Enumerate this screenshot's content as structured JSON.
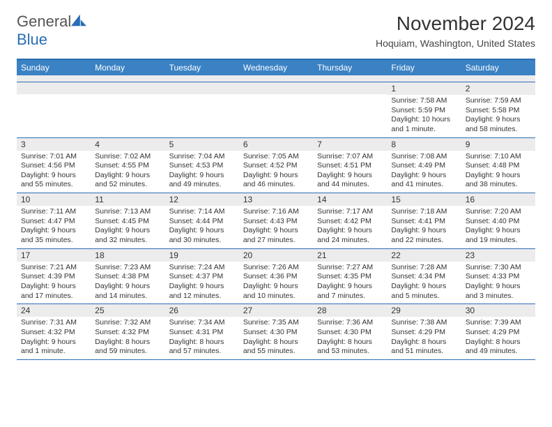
{
  "logo": {
    "word1": "General",
    "word2": "Blue"
  },
  "title": "November 2024",
  "subtitle": "Hoquiam, Washington, United States",
  "colors": {
    "header_bar": "#3b82c4",
    "rule": "#2a6db5",
    "daynum_bg": "#ececec",
    "text": "#333333",
    "logo_gray": "#555555",
    "logo_blue": "#2a6db5"
  },
  "weekdays": [
    "Sunday",
    "Monday",
    "Tuesday",
    "Wednesday",
    "Thursday",
    "Friday",
    "Saturday"
  ],
  "weeks": [
    [
      null,
      null,
      null,
      null,
      null,
      {
        "n": "1",
        "sunrise": "7:58 AM",
        "sunset": "5:59 PM",
        "daylight": "10 hours and 1 minute."
      },
      {
        "n": "2",
        "sunrise": "7:59 AM",
        "sunset": "5:58 PM",
        "daylight": "9 hours and 58 minutes."
      }
    ],
    [
      {
        "n": "3",
        "sunrise": "7:01 AM",
        "sunset": "4:56 PM",
        "daylight": "9 hours and 55 minutes."
      },
      {
        "n": "4",
        "sunrise": "7:02 AM",
        "sunset": "4:55 PM",
        "daylight": "9 hours and 52 minutes."
      },
      {
        "n": "5",
        "sunrise": "7:04 AM",
        "sunset": "4:53 PM",
        "daylight": "9 hours and 49 minutes."
      },
      {
        "n": "6",
        "sunrise": "7:05 AM",
        "sunset": "4:52 PM",
        "daylight": "9 hours and 46 minutes."
      },
      {
        "n": "7",
        "sunrise": "7:07 AM",
        "sunset": "4:51 PM",
        "daylight": "9 hours and 44 minutes."
      },
      {
        "n": "8",
        "sunrise": "7:08 AM",
        "sunset": "4:49 PM",
        "daylight": "9 hours and 41 minutes."
      },
      {
        "n": "9",
        "sunrise": "7:10 AM",
        "sunset": "4:48 PM",
        "daylight": "9 hours and 38 minutes."
      }
    ],
    [
      {
        "n": "10",
        "sunrise": "7:11 AM",
        "sunset": "4:47 PM",
        "daylight": "9 hours and 35 minutes."
      },
      {
        "n": "11",
        "sunrise": "7:13 AM",
        "sunset": "4:45 PM",
        "daylight": "9 hours and 32 minutes."
      },
      {
        "n": "12",
        "sunrise": "7:14 AM",
        "sunset": "4:44 PM",
        "daylight": "9 hours and 30 minutes."
      },
      {
        "n": "13",
        "sunrise": "7:16 AM",
        "sunset": "4:43 PM",
        "daylight": "9 hours and 27 minutes."
      },
      {
        "n": "14",
        "sunrise": "7:17 AM",
        "sunset": "4:42 PM",
        "daylight": "9 hours and 24 minutes."
      },
      {
        "n": "15",
        "sunrise": "7:18 AM",
        "sunset": "4:41 PM",
        "daylight": "9 hours and 22 minutes."
      },
      {
        "n": "16",
        "sunrise": "7:20 AM",
        "sunset": "4:40 PM",
        "daylight": "9 hours and 19 minutes."
      }
    ],
    [
      {
        "n": "17",
        "sunrise": "7:21 AM",
        "sunset": "4:39 PM",
        "daylight": "9 hours and 17 minutes."
      },
      {
        "n": "18",
        "sunrise": "7:23 AM",
        "sunset": "4:38 PM",
        "daylight": "9 hours and 14 minutes."
      },
      {
        "n": "19",
        "sunrise": "7:24 AM",
        "sunset": "4:37 PM",
        "daylight": "9 hours and 12 minutes."
      },
      {
        "n": "20",
        "sunrise": "7:26 AM",
        "sunset": "4:36 PM",
        "daylight": "9 hours and 10 minutes."
      },
      {
        "n": "21",
        "sunrise": "7:27 AM",
        "sunset": "4:35 PM",
        "daylight": "9 hours and 7 minutes."
      },
      {
        "n": "22",
        "sunrise": "7:28 AM",
        "sunset": "4:34 PM",
        "daylight": "9 hours and 5 minutes."
      },
      {
        "n": "23",
        "sunrise": "7:30 AM",
        "sunset": "4:33 PM",
        "daylight": "9 hours and 3 minutes."
      }
    ],
    [
      {
        "n": "24",
        "sunrise": "7:31 AM",
        "sunset": "4:32 PM",
        "daylight": "9 hours and 1 minute."
      },
      {
        "n": "25",
        "sunrise": "7:32 AM",
        "sunset": "4:32 PM",
        "daylight": "8 hours and 59 minutes."
      },
      {
        "n": "26",
        "sunrise": "7:34 AM",
        "sunset": "4:31 PM",
        "daylight": "8 hours and 57 minutes."
      },
      {
        "n": "27",
        "sunrise": "7:35 AM",
        "sunset": "4:30 PM",
        "daylight": "8 hours and 55 minutes."
      },
      {
        "n": "28",
        "sunrise": "7:36 AM",
        "sunset": "4:30 PM",
        "daylight": "8 hours and 53 minutes."
      },
      {
        "n": "29",
        "sunrise": "7:38 AM",
        "sunset": "4:29 PM",
        "daylight": "8 hours and 51 minutes."
      },
      {
        "n": "30",
        "sunrise": "7:39 AM",
        "sunset": "4:29 PM",
        "daylight": "8 hours and 49 minutes."
      }
    ]
  ]
}
